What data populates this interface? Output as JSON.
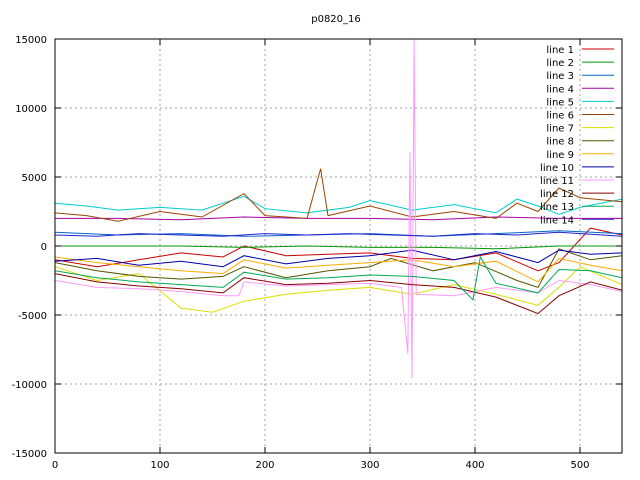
{
  "chart_data": {
    "type": "line",
    "title": "p0820_16",
    "xlim": [
      0,
      540
    ],
    "ylim": [
      -15000,
      15000
    ],
    "x_ticks": [
      0,
      100,
      200,
      300,
      400,
      500
    ],
    "y_ticks": [
      -15000,
      -10000,
      -5000,
      0,
      5000,
      10000,
      15000
    ],
    "grid": true,
    "legend_position": "top-right",
    "series": [
      {
        "name": "line 1",
        "color": "#cc0000",
        "points": [
          [
            0,
            -1000
          ],
          [
            40,
            -1500
          ],
          [
            80,
            -1000
          ],
          [
            120,
            -500
          ],
          [
            160,
            -800
          ],
          [
            180,
            0
          ],
          [
            220,
            -700
          ],
          [
            260,
            -600
          ],
          [
            300,
            -500
          ],
          [
            340,
            -900
          ],
          [
            380,
            -1000
          ],
          [
            420,
            -500
          ],
          [
            460,
            -1800
          ],
          [
            480,
            -1200
          ],
          [
            510,
            1300
          ],
          [
            540,
            800
          ]
        ]
      },
      {
        "name": "line 2",
        "color": "#009900",
        "points": [
          [
            0,
            0
          ],
          [
            60,
            0
          ],
          [
            120,
            0
          ],
          [
            180,
            -100
          ],
          [
            240,
            0
          ],
          [
            300,
            -100
          ],
          [
            360,
            -100
          ],
          [
            420,
            -200
          ],
          [
            480,
            0
          ],
          [
            540,
            0
          ]
        ]
      },
      {
        "name": "line 3",
        "color": "#0066cc",
        "points": [
          [
            0,
            1000
          ],
          [
            60,
            800
          ],
          [
            120,
            900
          ],
          [
            180,
            700
          ],
          [
            240,
            800
          ],
          [
            300,
            900
          ],
          [
            360,
            700
          ],
          [
            420,
            900
          ],
          [
            480,
            1100
          ],
          [
            540,
            900
          ]
        ]
      },
      {
        "name": "line 4",
        "color": "#aa00aa",
        "points": [
          [
            0,
            2000
          ],
          [
            60,
            2000
          ],
          [
            120,
            1900
          ],
          [
            180,
            2100
          ],
          [
            240,
            2000
          ],
          [
            300,
            2000
          ],
          [
            360,
            1900
          ],
          [
            420,
            2100
          ],
          [
            480,
            2000
          ],
          [
            540,
            2000
          ]
        ]
      },
      {
        "name": "line 5",
        "color": "#00cccc",
        "points": [
          [
            0,
            3100
          ],
          [
            30,
            2900
          ],
          [
            60,
            2600
          ],
          [
            100,
            2800
          ],
          [
            140,
            2600
          ],
          [
            180,
            3600
          ],
          [
            200,
            2700
          ],
          [
            240,
            2400
          ],
          [
            280,
            2800
          ],
          [
            300,
            3300
          ],
          [
            340,
            2600
          ],
          [
            380,
            3000
          ],
          [
            420,
            2400
          ],
          [
            440,
            3400
          ],
          [
            460,
            2900
          ],
          [
            480,
            2300
          ],
          [
            500,
            2800
          ],
          [
            540,
            3400
          ]
        ]
      },
      {
        "name": "line 6",
        "color": "#994400",
        "points": [
          [
            0,
            2400
          ],
          [
            30,
            2200
          ],
          [
            60,
            1800
          ],
          [
            100,
            2500
          ],
          [
            140,
            2100
          ],
          [
            180,
            3800
          ],
          [
            200,
            2200
          ],
          [
            240,
            2000
          ],
          [
            253,
            5600
          ],
          [
            260,
            2200
          ],
          [
            300,
            2900
          ],
          [
            340,
            2100
          ],
          [
            380,
            2500
          ],
          [
            420,
            2000
          ],
          [
            440,
            3100
          ],
          [
            460,
            2500
          ],
          [
            480,
            4200
          ],
          [
            500,
            3500
          ],
          [
            540,
            3200
          ]
        ]
      },
      {
        "name": "line 7",
        "color": "#dddd00",
        "points": [
          [
            0,
            -1500
          ],
          [
            40,
            -2500
          ],
          [
            80,
            -2000
          ],
          [
            120,
            -4500
          ],
          [
            150,
            -4800
          ],
          [
            180,
            -4000
          ],
          [
            220,
            -3500
          ],
          [
            260,
            -3200
          ],
          [
            300,
            -3000
          ],
          [
            340,
            -3500
          ],
          [
            380,
            -2800
          ],
          [
            420,
            -3500
          ],
          [
            460,
            -4300
          ],
          [
            480,
            -3000
          ],
          [
            500,
            -1500
          ],
          [
            540,
            -2800
          ]
        ]
      },
      {
        "name": "line 8",
        "color": "#555500",
        "points": [
          [
            0,
            -1200
          ],
          [
            40,
            -1800
          ],
          [
            80,
            -2200
          ],
          [
            120,
            -2400
          ],
          [
            160,
            -2200
          ],
          [
            180,
            -1500
          ],
          [
            220,
            -2300
          ],
          [
            260,
            -1800
          ],
          [
            300,
            -1500
          ],
          [
            320,
            -900
          ],
          [
            360,
            -1800
          ],
          [
            400,
            -1200
          ],
          [
            440,
            -2500
          ],
          [
            460,
            -3000
          ],
          [
            480,
            -200
          ],
          [
            510,
            -1000
          ],
          [
            540,
            -700
          ]
        ]
      },
      {
        "name": "line 9",
        "color": "#ffaa00",
        "points": [
          [
            0,
            -800
          ],
          [
            40,
            -1200
          ],
          [
            80,
            -1500
          ],
          [
            120,
            -1800
          ],
          [
            160,
            -2000
          ],
          [
            180,
            -1000
          ],
          [
            220,
            -1600
          ],
          [
            260,
            -1400
          ],
          [
            300,
            -1200
          ],
          [
            340,
            -1000
          ],
          [
            380,
            -1500
          ],
          [
            420,
            -1100
          ],
          [
            460,
            -2600
          ],
          [
            480,
            -900
          ],
          [
            510,
            -1400
          ],
          [
            540,
            -1800
          ]
        ]
      },
      {
        "name": "line 10",
        "color": "#0000aa",
        "points": [
          [
            0,
            -1100
          ],
          [
            40,
            -900
          ],
          [
            80,
            -1400
          ],
          [
            120,
            -1100
          ],
          [
            160,
            -1500
          ],
          [
            180,
            -700
          ],
          [
            220,
            -1300
          ],
          [
            260,
            -900
          ],
          [
            300,
            -700
          ],
          [
            340,
            -300
          ],
          [
            380,
            -1000
          ],
          [
            420,
            -400
          ],
          [
            460,
            -1200
          ],
          [
            480,
            -300
          ],
          [
            510,
            -600
          ],
          [
            540,
            -500
          ]
        ]
      },
      {
        "name": "line 11",
        "color": "#ff99ff",
        "points": [
          [
            0,
            -2500
          ],
          [
            40,
            -3000
          ],
          [
            80,
            -3100
          ],
          [
            120,
            -3300
          ],
          [
            160,
            -3600
          ],
          [
            175,
            -3600
          ],
          [
            180,
            -2600
          ],
          [
            220,
            -2900
          ],
          [
            260,
            -2800
          ],
          [
            300,
            -2700
          ],
          [
            330,
            -3000
          ],
          [
            336,
            -7800
          ],
          [
            338,
            6800
          ],
          [
            340,
            -9600
          ],
          [
            342,
            15000
          ],
          [
            344,
            -3500
          ],
          [
            380,
            -3600
          ],
          [
            420,
            -3000
          ],
          [
            460,
            -3400
          ],
          [
            480,
            -2500
          ],
          [
            510,
            -2800
          ],
          [
            540,
            -3300
          ]
        ]
      },
      {
        "name": "line 12",
        "color": "#880000",
        "points": [
          [
            0,
            -2000
          ],
          [
            40,
            -2600
          ],
          [
            80,
            -2900
          ],
          [
            120,
            -3100
          ],
          [
            160,
            -3400
          ],
          [
            180,
            -2300
          ],
          [
            220,
            -2800
          ],
          [
            260,
            -2700
          ],
          [
            300,
            -2500
          ],
          [
            340,
            -2800
          ],
          [
            380,
            -3000
          ],
          [
            420,
            -3700
          ],
          [
            460,
            -4900
          ],
          [
            480,
            -3600
          ],
          [
            510,
            -2600
          ],
          [
            540,
            -3200
          ]
        ]
      },
      {
        "name": "line 13",
        "color": "#00aa55",
        "points": [
          [
            0,
            -1800
          ],
          [
            40,
            -2300
          ],
          [
            80,
            -2600
          ],
          [
            120,
            -2800
          ],
          [
            160,
            -3000
          ],
          [
            180,
            -1900
          ],
          [
            220,
            -2400
          ],
          [
            260,
            -2300
          ],
          [
            300,
            -2100
          ],
          [
            340,
            -2200
          ],
          [
            380,
            -2500
          ],
          [
            398,
            -3900
          ],
          [
            405,
            -800
          ],
          [
            420,
            -2700
          ],
          [
            460,
            -3400
          ],
          [
            480,
            -1700
          ],
          [
            510,
            -1800
          ],
          [
            540,
            -2300
          ]
        ]
      },
      {
        "name": "line 14",
        "color": "#2222cc",
        "points": [
          [
            0,
            800
          ],
          [
            40,
            700
          ],
          [
            80,
            900
          ],
          [
            120,
            800
          ],
          [
            160,
            700
          ],
          [
            200,
            900
          ],
          [
            240,
            800
          ],
          [
            280,
            900
          ],
          [
            320,
            800
          ],
          [
            360,
            700
          ],
          [
            400,
            900
          ],
          [
            440,
            800
          ],
          [
            480,
            1000
          ],
          [
            540,
            700
          ]
        ]
      }
    ]
  }
}
